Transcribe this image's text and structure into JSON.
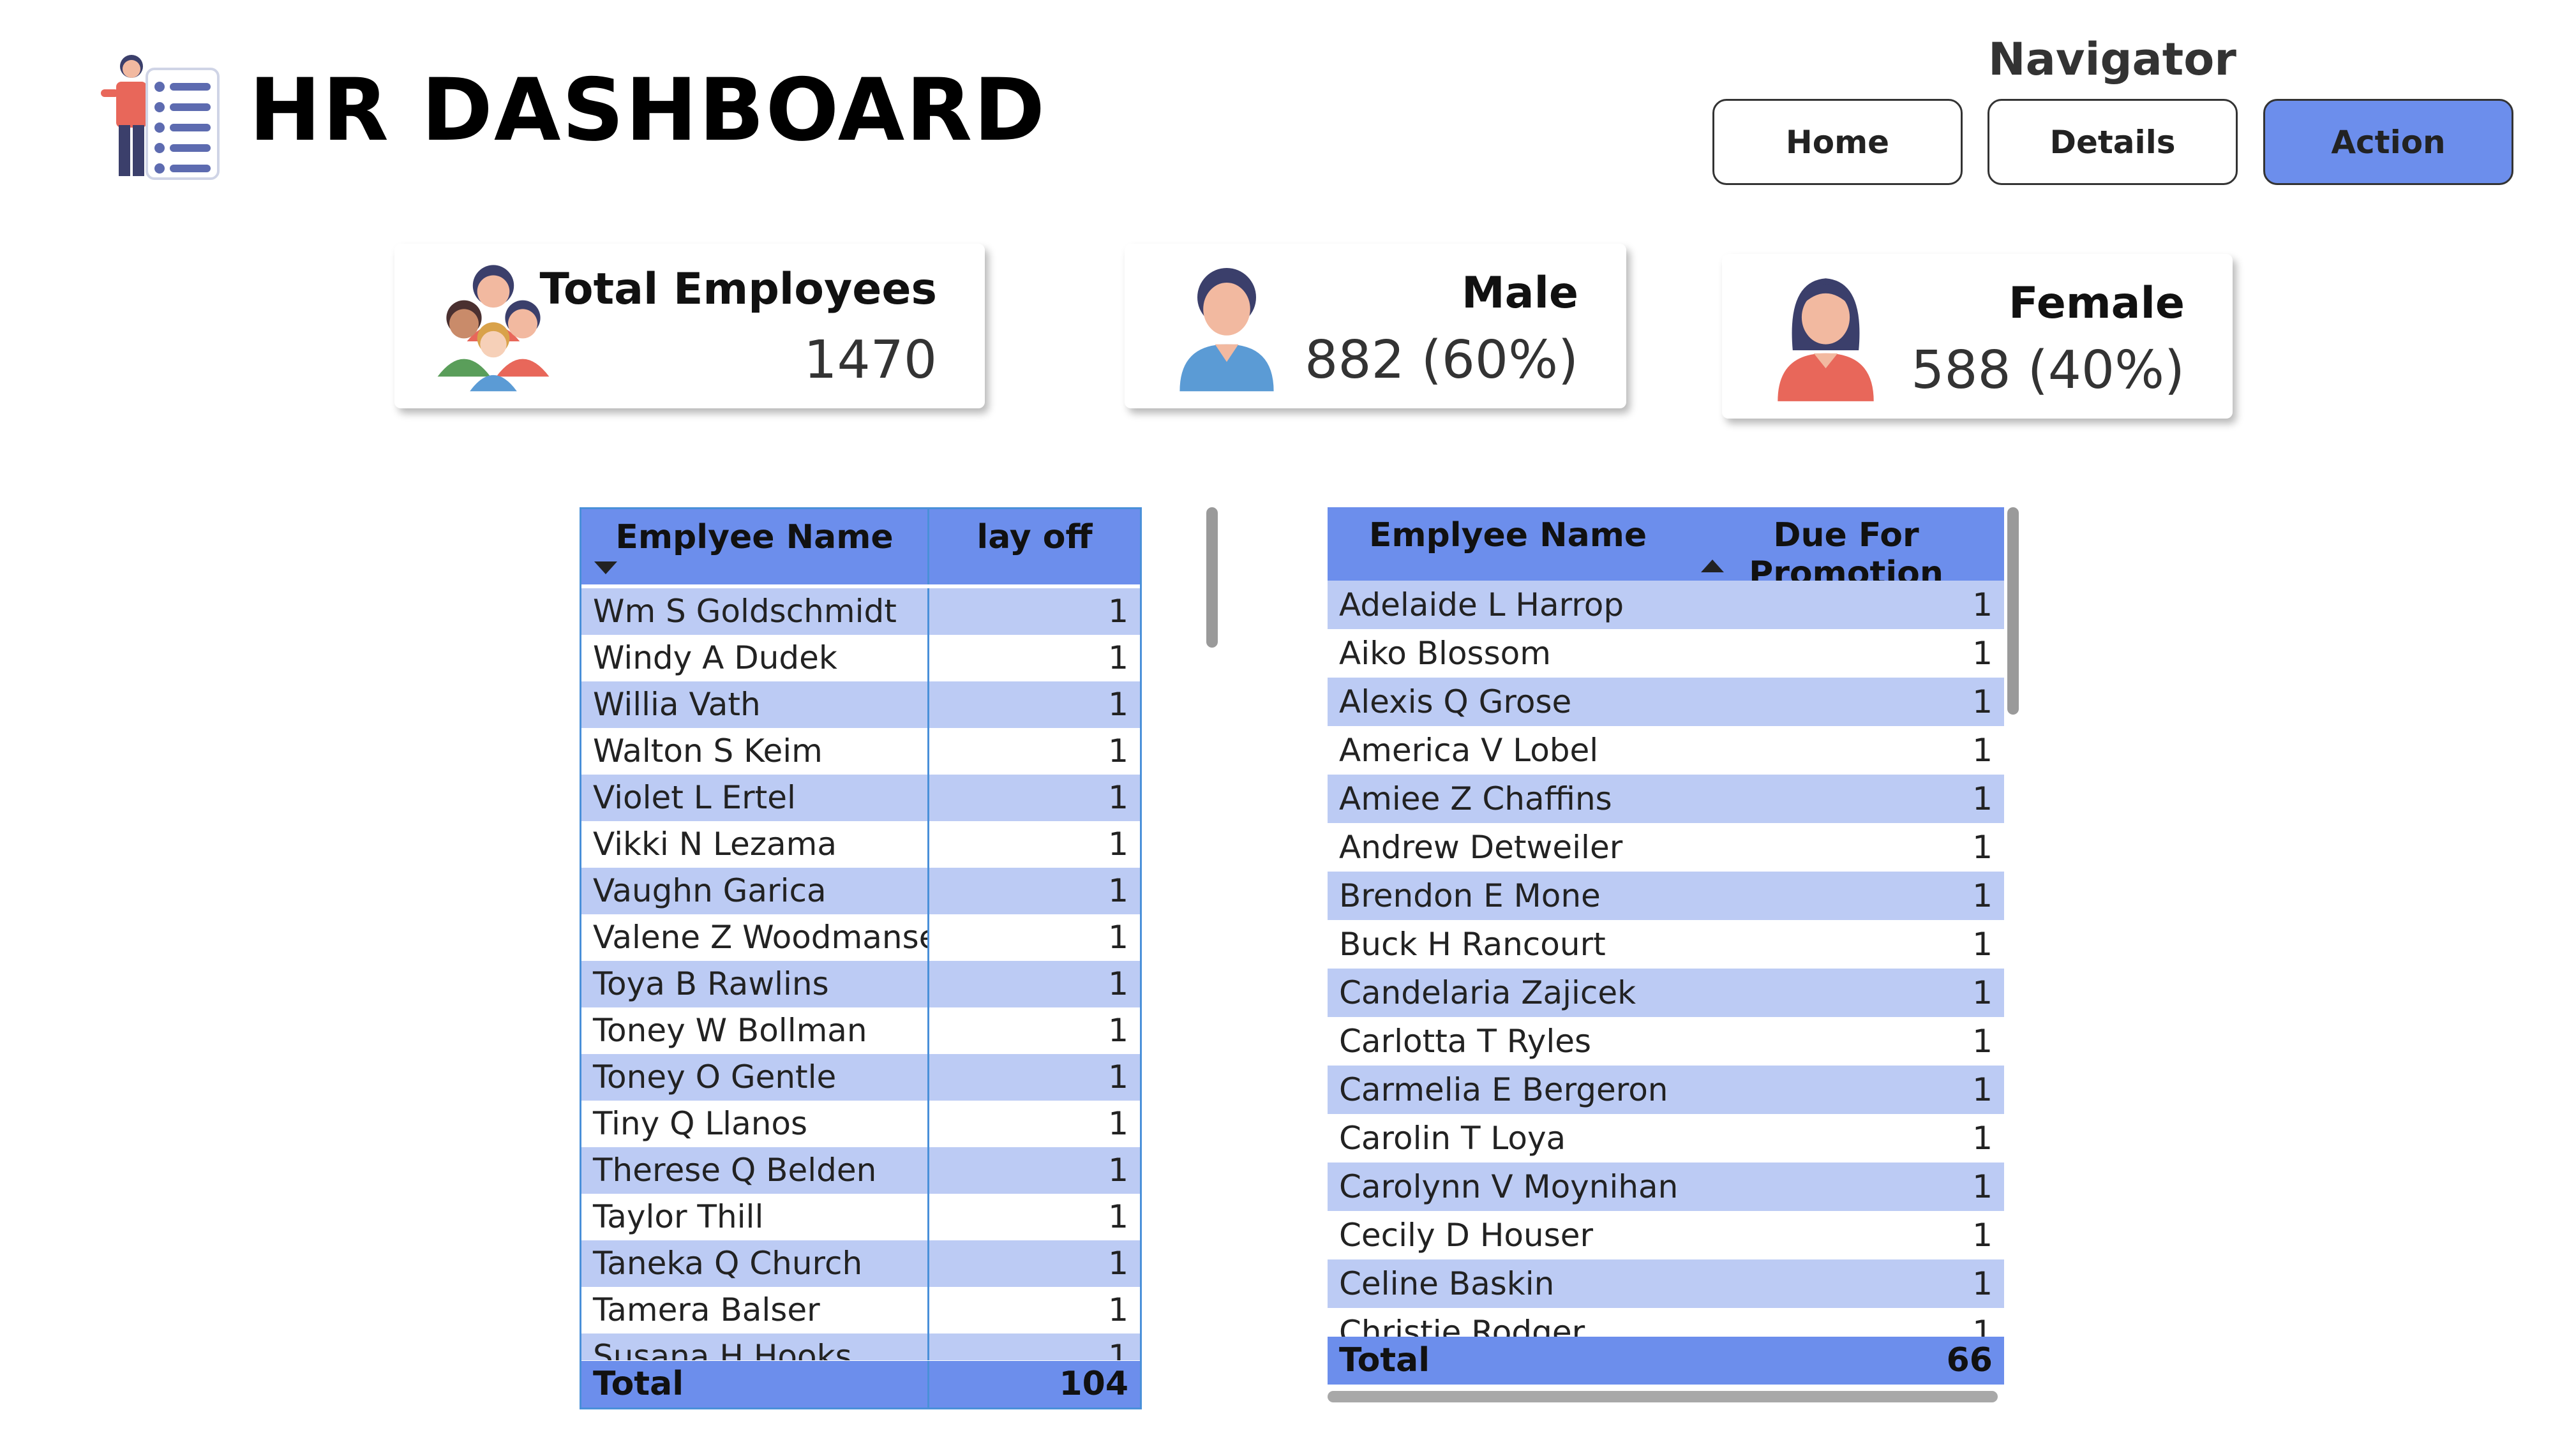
{
  "header": {
    "title": "HR DASHBOARD",
    "logo_icon": "employee-list-icon"
  },
  "navigator": {
    "title": "Navigator",
    "buttons": [
      {
        "label": "Home",
        "active": false
      },
      {
        "label": "Details",
        "active": false
      },
      {
        "label": "Action",
        "active": true
      }
    ],
    "active_color": "#6C8EEC"
  },
  "cards": {
    "total": {
      "label": "Total Employees",
      "value": "1470",
      "icon": "group-icon"
    },
    "male": {
      "label": "Male",
      "value": "882 (60%)",
      "icon": "male-user-icon"
    },
    "female": {
      "label": "Female",
      "value": "588 (40%)",
      "icon": "female-user-icon"
    }
  },
  "layoff_table": {
    "col1": "Emplyee Name",
    "col2": "lay off",
    "sort": "descending",
    "rows": [
      {
        "name": "Wm S Goldschmidt",
        "value": "1"
      },
      {
        "name": "Windy A Dudek",
        "value": "1"
      },
      {
        "name": "Willia Vath",
        "value": "1"
      },
      {
        "name": "Walton S Keim",
        "value": "1"
      },
      {
        "name": "Violet L Ertel",
        "value": "1"
      },
      {
        "name": "Vikki N Lezama",
        "value": "1"
      },
      {
        "name": "Vaughn Garica",
        "value": "1"
      },
      {
        "name": "Valene Z Woodmansee",
        "value": "1"
      },
      {
        "name": "Toya B Rawlins",
        "value": "1"
      },
      {
        "name": "Toney W Bollman",
        "value": "1"
      },
      {
        "name": "Toney O Gentle",
        "value": "1"
      },
      {
        "name": "Tiny Q Llanos",
        "value": "1"
      },
      {
        "name": "Therese Q Belden",
        "value": "1"
      },
      {
        "name": "Taylor Thill",
        "value": "1"
      },
      {
        "name": "Taneka Q Church",
        "value": "1"
      },
      {
        "name": "Tamera Balser",
        "value": "1"
      },
      {
        "name": "Susana H Hooks",
        "value": "1"
      }
    ],
    "total_label": "Total",
    "total_value": "104"
  },
  "promotion_table": {
    "col1": "Emplyee Name",
    "col2": "Due For Promotion",
    "sort": "ascending",
    "rows": [
      {
        "name": "Adelaide L Harrop",
        "value": "1"
      },
      {
        "name": "Aiko Blossom",
        "value": "1"
      },
      {
        "name": "Alexis Q Grose",
        "value": "1"
      },
      {
        "name": "America V Lobel",
        "value": "1"
      },
      {
        "name": "Amiee Z Chaffins",
        "value": "1"
      },
      {
        "name": "Andrew Detweiler",
        "value": "1"
      },
      {
        "name": "Brendon E Mone",
        "value": "1"
      },
      {
        "name": "Buck H Rancourt",
        "value": "1"
      },
      {
        "name": "Candelaria Zajicek",
        "value": "1"
      },
      {
        "name": "Carlotta T Ryles",
        "value": "1"
      },
      {
        "name": "Carmelia E Bergeron",
        "value": "1"
      },
      {
        "name": "Carolin T Loya",
        "value": "1"
      },
      {
        "name": "Carolynn V Moynihan",
        "value": "1"
      },
      {
        "name": "Cecily D Houser",
        "value": "1"
      },
      {
        "name": "Celine Baskin",
        "value": "1"
      },
      {
        "name": "Christie Rodger",
        "value": "1"
      }
    ],
    "total_label": "Total",
    "total_value": "66"
  }
}
